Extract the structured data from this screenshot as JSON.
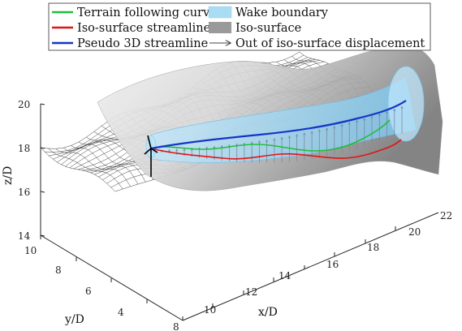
{
  "legend": {
    "items": [
      {
        "label": "Terrain following curve",
        "color": "#1fbf3a",
        "kind": "line"
      },
      {
        "label": "Wake boundary",
        "color": "#a9dcf5",
        "kind": "patch"
      },
      {
        "label": "Iso-surface streamline",
        "color": "#e01515",
        "kind": "line"
      },
      {
        "label": "Iso-surface",
        "color": "#9a9a9a",
        "kind": "patch"
      },
      {
        "label": "Pseudo 3D streamline",
        "color": "#1535c8",
        "kind": "line"
      },
      {
        "label": "Out of iso-surface displacement",
        "color": "#6a6a6a",
        "kind": "arrow"
      }
    ]
  },
  "axes": {
    "z": {
      "label": "z/D",
      "ticks": [
        "14",
        "16",
        "18",
        "20"
      ]
    },
    "y": {
      "label": "y/D",
      "ticks": [
        "4",
        "6",
        "8",
        "10"
      ]
    },
    "x": {
      "label": "x/D",
      "ticks": [
        "8",
        "10",
        "12",
        "14",
        "16",
        "18",
        "20",
        "22"
      ]
    }
  },
  "colors": {
    "terrain_mesh": "#2a2a2a",
    "wake": "#8fd0f2",
    "iso_surface": "#bdbdbd",
    "displacement_arrows": "#7a8aa0",
    "turbine": "#000000"
  }
}
